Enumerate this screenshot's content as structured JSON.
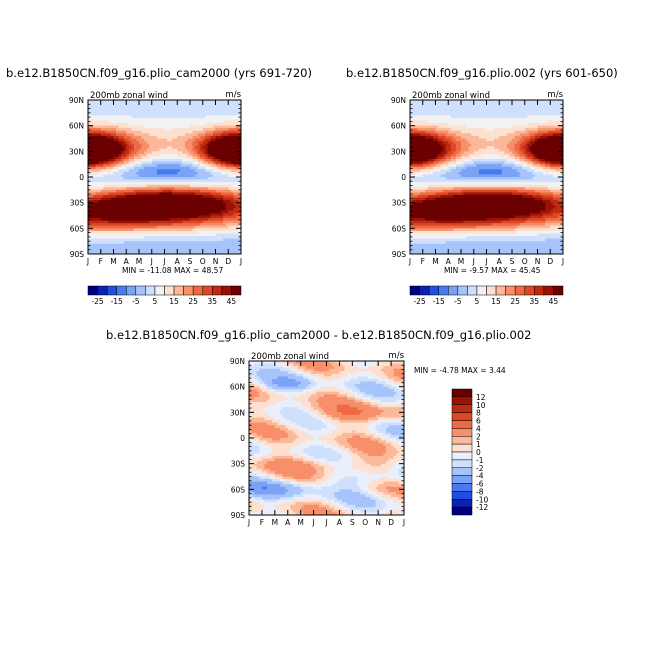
{
  "chart_data": [
    {
      "type": "heatmap",
      "title": "b.e12.B1850CN.f09_g16.plio_cam2000 (yrs 691-720)",
      "subtitle": "200mb zonal wind",
      "units": "m/s",
      "x_ticks": [
        "J",
        "F",
        "M",
        "A",
        "M",
        "J",
        "J",
        "A",
        "S",
        "O",
        "N",
        "D",
        "J"
      ],
      "y_ticks": [
        "90N",
        "60N",
        "30N",
        "0",
        "30S",
        "60S",
        "90S"
      ],
      "ylim": [
        -90,
        90
      ],
      "min": "-11.08",
      "max": "48.57",
      "colorbar_labels": [
        "-25",
        "-15",
        "-5",
        "5",
        "15",
        "25",
        "35",
        "45"
      ],
      "features": [
        {
          "lat": 30,
          "month": 1,
          "value": 45
        },
        {
          "lat": 30,
          "month": 11.5,
          "value": 35
        },
        {
          "lat": -30,
          "month": 7,
          "value": 48
        },
        {
          "lat": -45,
          "month": 1,
          "value": 30
        },
        {
          "lat": 8,
          "month": 7,
          "value": -10
        }
      ]
    },
    {
      "type": "heatmap",
      "title": "b.e12.B1850CN.f09_g16.plio.002 (yrs 601-650)",
      "subtitle": "200mb zonal wind",
      "units": "m/s",
      "x_ticks": [
        "J",
        "F",
        "M",
        "A",
        "M",
        "J",
        "J",
        "A",
        "S",
        "O",
        "N",
        "D",
        "J"
      ],
      "y_ticks": [
        "90N",
        "60N",
        "30N",
        "0",
        "30S",
        "60S",
        "90S"
      ],
      "ylim": [
        -90,
        90
      ],
      "min": "-9.57",
      "max": "45.45",
      "colorbar_labels": [
        "-25",
        "-15",
        "-5",
        "5",
        "15",
        "25",
        "35",
        "45"
      ],
      "features": [
        {
          "lat": 30,
          "month": 1,
          "value": 42
        },
        {
          "lat": 30,
          "month": 11.5,
          "value": 33
        },
        {
          "lat": -30,
          "month": 7,
          "value": 45
        },
        {
          "lat": -45,
          "month": 1,
          "value": 28
        },
        {
          "lat": 8,
          "month": 7,
          "value": -9
        }
      ]
    },
    {
      "type": "heatmap",
      "title": "b.e12.B1850CN.f09_g16.plio_cam2000 - b.e12.B1850CN.f09_g16.plio.002",
      "subtitle": "200mb zonal wind",
      "units": "m/s",
      "x_ticks": [
        "J",
        "F",
        "M",
        "A",
        "M",
        "J",
        "J",
        "A",
        "S",
        "O",
        "N",
        "D",
        "J"
      ],
      "y_ticks": [
        "90N",
        "60N",
        "30N",
        "0",
        "30S",
        "60S",
        "90S"
      ],
      "ylim": [
        -90,
        90
      ],
      "min": "-4.78",
      "max": "3.44",
      "colorbar_labels": [
        "12",
        "10",
        "8",
        "6",
        "4",
        "2",
        "1",
        "0",
        "-1",
        "-2",
        "-4",
        "-6",
        "-8",
        "-10",
        "-12"
      ]
    }
  ],
  "labels": {
    "min_label": "MIN =",
    "max_label": "MAX ="
  },
  "colors": {
    "full_scale": [
      "#00007f",
      "#0a22b4",
      "#1f4fe0",
      "#4a7af0",
      "#7aa3f6",
      "#a6c4fa",
      "#cfe0fc",
      "#f2f2f2",
      "#fde0cf",
      "#fbb99a",
      "#f7906a",
      "#ee6a44",
      "#dd4726",
      "#c02a12",
      "#9a1206",
      "#6b0000"
    ],
    "diff_scale": [
      "#6b0000",
      "#9a1206",
      "#c02a12",
      "#dd4726",
      "#ee6a44",
      "#f7906a",
      "#fbb99a",
      "#fde0cf",
      "#e9f0fb",
      "#cfe0fc",
      "#a6c4fa",
      "#7aa3f6",
      "#4a7af0",
      "#1f4fe0",
      "#0a22b4",
      "#00007f"
    ]
  }
}
